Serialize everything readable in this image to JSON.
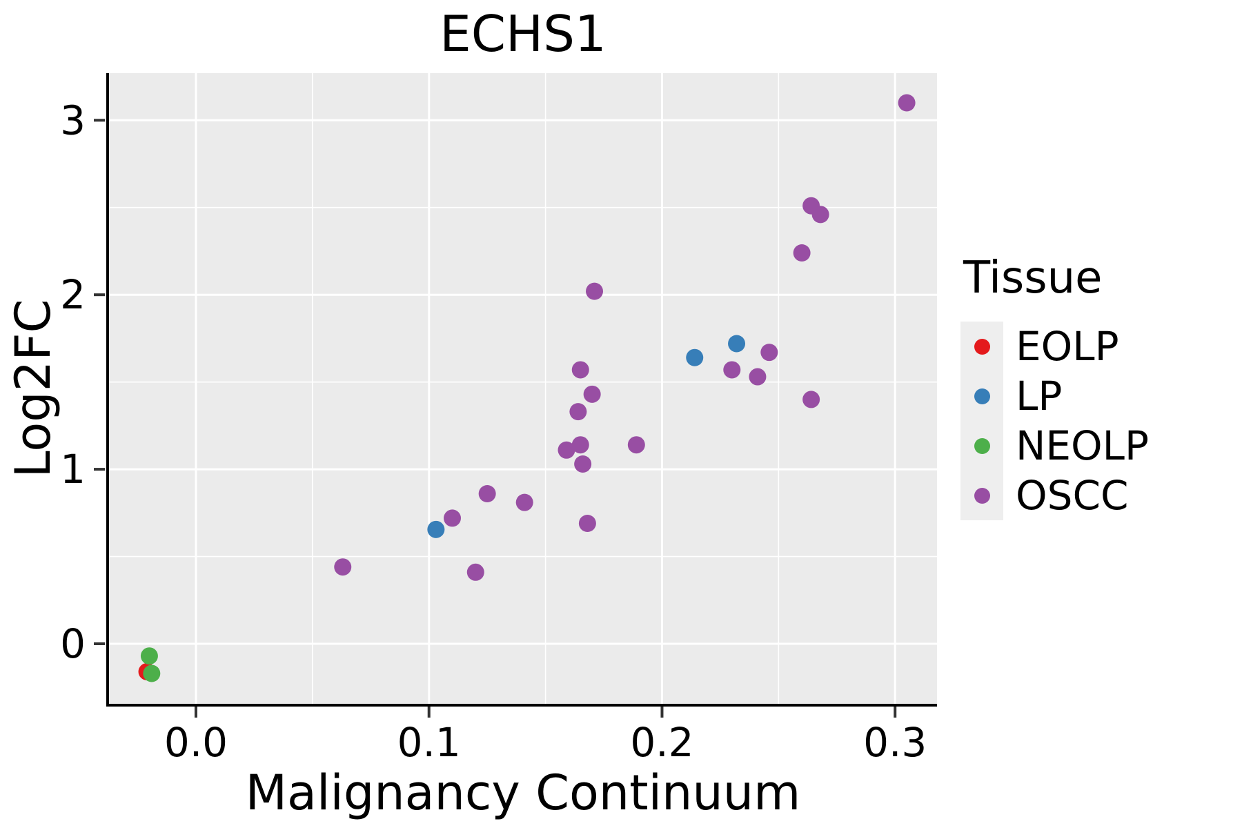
{
  "figure": {
    "title": "ECHS1"
  },
  "axes": {
    "x_label": "Malignancy Continuum",
    "y_label": "Log2FC"
  },
  "legend": {
    "title": "Tissue",
    "items": [
      {
        "label": "EOLP",
        "color": "#E41A1C"
      },
      {
        "label": "LP",
        "color": "#377EB8"
      },
      {
        "label": "NEOLP",
        "color": "#4DAF4A"
      },
      {
        "label": "OSCC",
        "color": "#984EA3"
      }
    ]
  },
  "chart_data": {
    "type": "scatter",
    "title": "ECHS1",
    "xlabel": "Malignancy Continuum",
    "ylabel": "Log2FC",
    "xlim": [
      -0.0373,
      0.318
    ],
    "ylim": [
      -0.344,
      3.27
    ],
    "x_ticks": [
      0.0,
      0.1,
      0.2,
      0.3
    ],
    "x_tick_labels": [
      "0.0",
      "0.1",
      "0.2",
      "0.3"
    ],
    "x_minor_ticks": [
      0.05,
      0.15,
      0.25
    ],
    "y_ticks": [
      0,
      1,
      2,
      3
    ],
    "y_tick_labels": [
      "0",
      "1",
      "2",
      "3"
    ],
    "y_minor_ticks": [
      0.5,
      1.5,
      2.5
    ],
    "grid": true,
    "panel_background": "#EBEBEB",
    "grid_color": "#FFFFFF",
    "legend_position": "right",
    "legend_title": "Tissue",
    "point_radius_px": 12.5,
    "series": [
      {
        "name": "EOLP",
        "color": "#E41A1C",
        "points": [
          [
            -0.021,
            -0.16
          ]
        ]
      },
      {
        "name": "LP",
        "color": "#377EB8",
        "points": [
          [
            0.103,
            0.655
          ],
          [
            0.214,
            1.64
          ],
          [
            0.232,
            1.72
          ]
        ]
      },
      {
        "name": "NEOLP",
        "color": "#4DAF4A",
        "points": [
          [
            -0.02,
            -0.07
          ],
          [
            -0.019,
            -0.17
          ]
        ]
      },
      {
        "name": "OSCC",
        "color": "#984EA3",
        "points": [
          [
            0.063,
            0.44
          ],
          [
            0.11,
            0.72
          ],
          [
            0.12,
            0.41
          ],
          [
            0.125,
            0.86
          ],
          [
            0.141,
            0.81
          ],
          [
            0.168,
            0.69
          ],
          [
            0.159,
            1.11
          ],
          [
            0.165,
            1.14
          ],
          [
            0.166,
            1.03
          ],
          [
            0.189,
            1.14
          ],
          [
            0.164,
            1.33
          ],
          [
            0.17,
            1.43
          ],
          [
            0.165,
            1.57
          ],
          [
            0.171,
            2.02
          ],
          [
            0.23,
            1.57
          ],
          [
            0.241,
            1.53
          ],
          [
            0.246,
            1.67
          ],
          [
            0.264,
            1.4
          ],
          [
            0.26,
            2.24
          ],
          [
            0.264,
            2.51
          ],
          [
            0.268,
            2.46
          ],
          [
            0.305,
            3.1
          ]
        ]
      }
    ]
  }
}
